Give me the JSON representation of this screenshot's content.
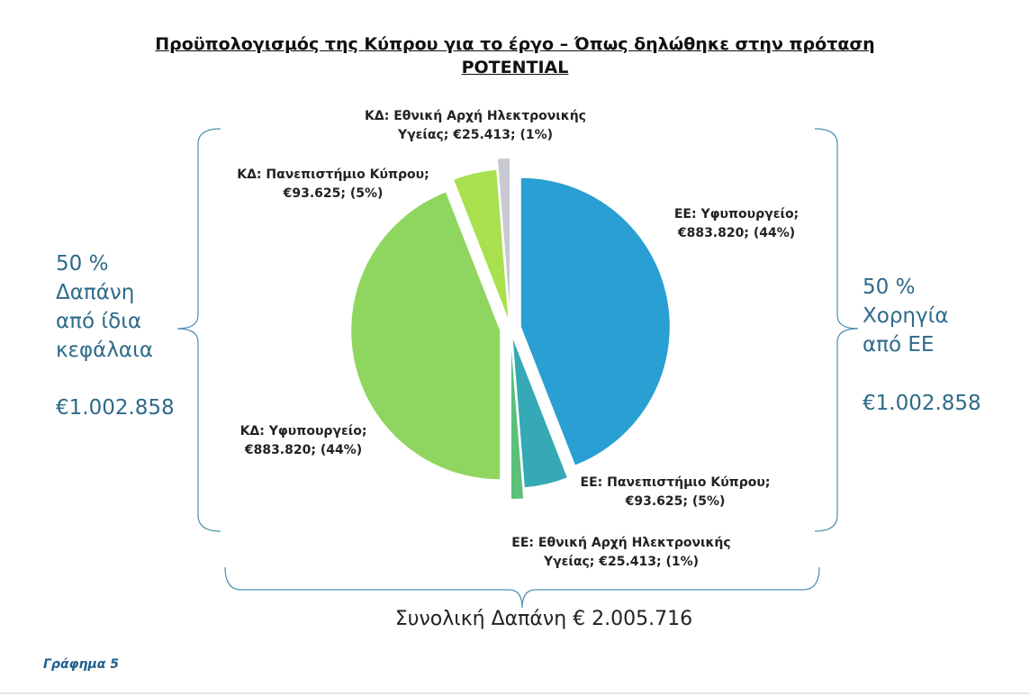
{
  "chart_data": {
    "type": "pie",
    "title": "Προϋπολογισμός της Κύπρου για το έργο – Όπως δηλώθηκε στην πρόταση POTENTIAL",
    "values": [
      883820,
      93625,
      25413,
      883820,
      93625,
      25413
    ],
    "colors": [
      "#2a9fd3",
      "#35a9b5",
      "#5cbf7a",
      "#8fd660",
      "#a8e04e",
      "#c8c9d2"
    ],
    "labels": [
      [
        "ΕΕ: Υφυπουργείο;",
        "€883.820; (44%)"
      ],
      [
        "ΕΕ: Πανεπιστήμιο Κύπρου;",
        "€93.625; (5%)"
      ],
      [
        "ΕΕ: Εθνική Αρχή Ηλεκτρονικής",
        "Υγείας; €25.413; (1%)"
      ],
      [
        "ΚΔ: Υφυπουργείο;",
        "€883.820; (44%)"
      ],
      [
        "ΚΔ: Πανεπιστήμιο Κύπρου;",
        "€93.625; (5%)"
      ],
      [
        "ΚΔ: Εθνική Αρχή Ηλεκτρονικής",
        "Υγείας; €25.413; (1%)"
      ]
    ],
    "annotations": {
      "left": [
        "50 %",
        "Δαπάνη",
        "από ίδια",
        "κεφάλαια",
        "€1.002.858"
      ],
      "right": [
        "50 %",
        "Χορηγία",
        "από ΕΕ",
        "€1.002.858"
      ],
      "bottom": "Συνολική Δαπάνη € 2.005.716"
    },
    "caption": "Γράφημα 5"
  }
}
